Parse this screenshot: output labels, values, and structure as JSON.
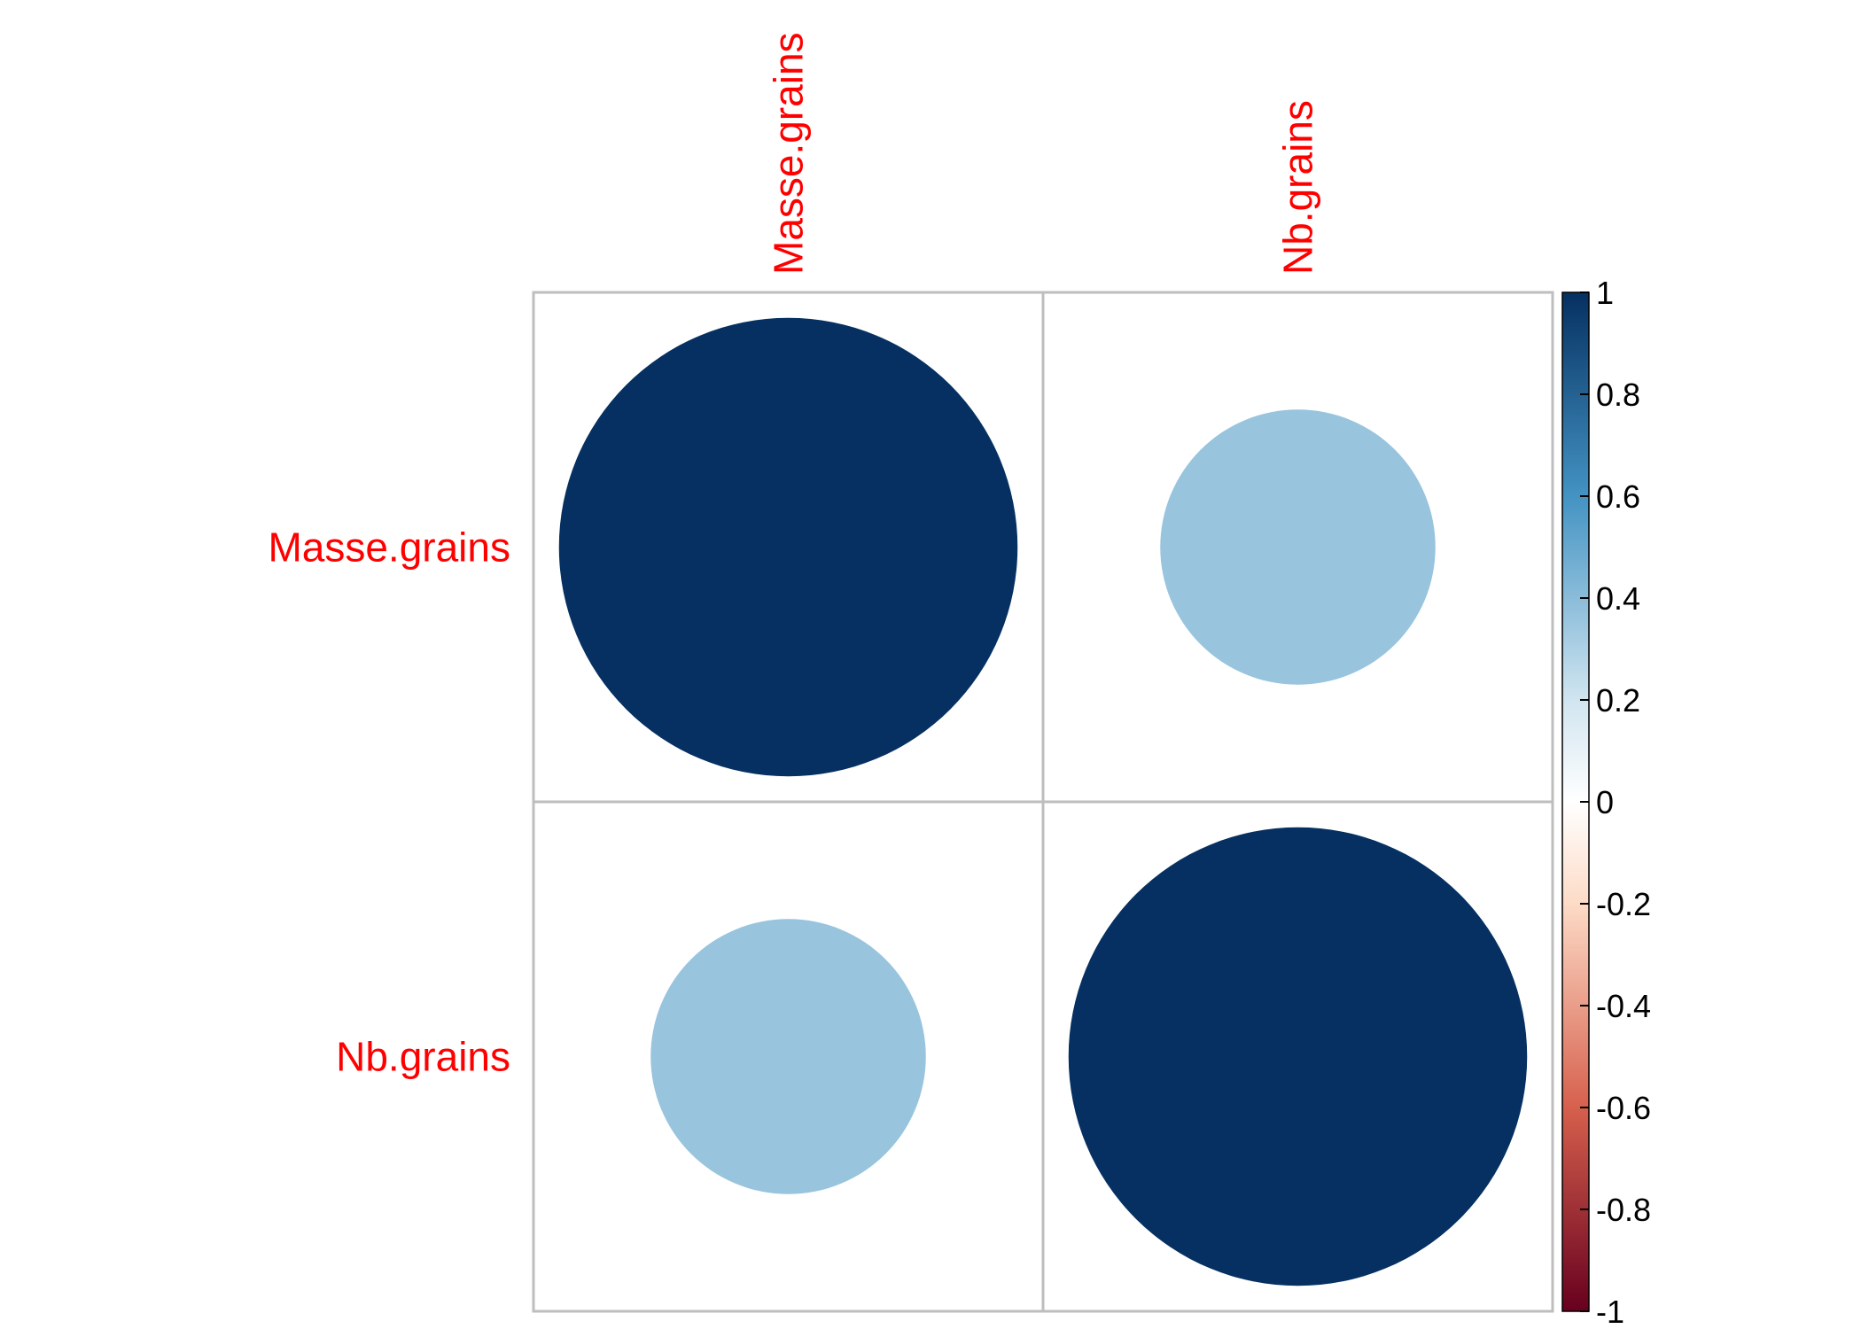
{
  "chart_data": {
    "type": "heatmap",
    "subtype": "correlation-circle-matrix",
    "variables": [
      "Masse.grains",
      "Nb.grains"
    ],
    "matrix": [
      [
        1.0,
        0.36
      ],
      [
        0.36,
        1.0
      ]
    ],
    "label_color": "#FF0000",
    "grid_color": "#BEBEBE",
    "colorbar": {
      "range": [
        -1,
        1
      ],
      "ticks": [
        "1",
        "0.8",
        "0.6",
        "0.4",
        "0.2",
        "0",
        "-0.2",
        "-0.4",
        "-0.6",
        "-0.8",
        "-1"
      ],
      "tick_values": [
        1,
        0.8,
        0.6,
        0.4,
        0.2,
        0,
        -0.2,
        -0.4,
        -0.6,
        -0.8,
        -1
      ],
      "stops": [
        {
          "value": -1,
          "color": "#67001F"
        },
        {
          "value": -0.6,
          "color": "#D6604D"
        },
        {
          "value": -0.2,
          "color": "#FDDBC7"
        },
        {
          "value": 0,
          "color": "#FFFFFF"
        },
        {
          "value": 0.2,
          "color": "#D1E5F0"
        },
        {
          "value": 0.6,
          "color": "#4393C3"
        },
        {
          "value": 1,
          "color": "#053061"
        }
      ],
      "placement": "right"
    },
    "legend": "colorbar-right",
    "grid": true
  }
}
